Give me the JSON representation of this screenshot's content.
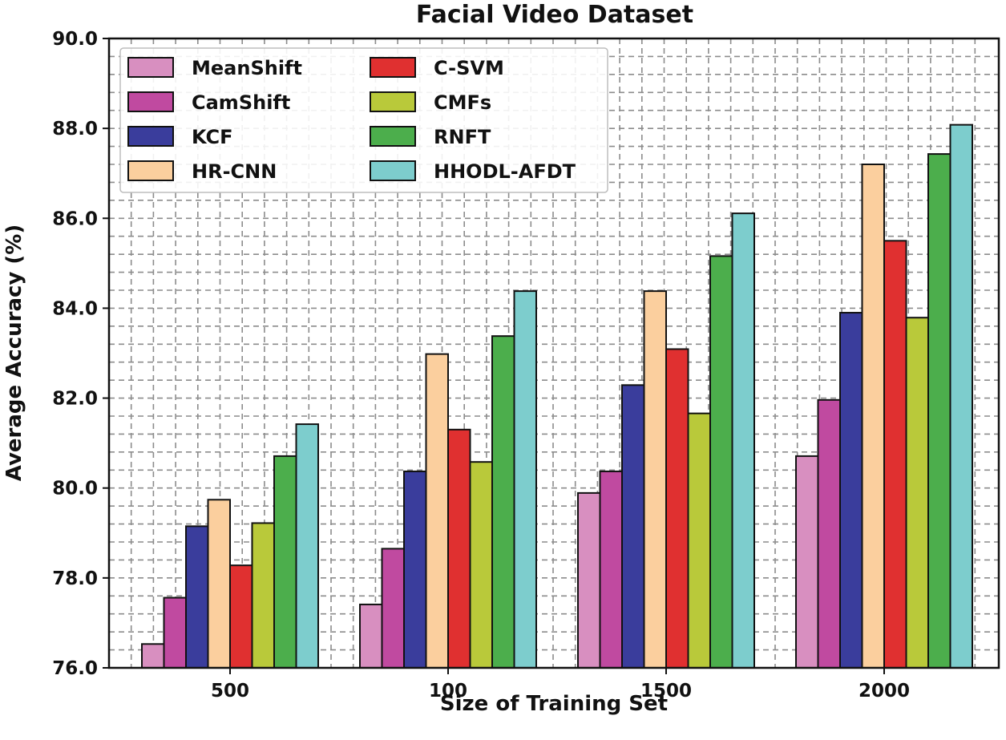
{
  "chart_data": {
    "type": "bar",
    "title": "Facial Video Dataset",
    "xlabel": "Size of Training Set",
    "ylabel": "Average Accuracy (%)",
    "categories": [
      "500",
      "100",
      "1500",
      "2000"
    ],
    "ylim": [
      76.0,
      90.0
    ],
    "yticks": [
      "76.0",
      "78.0",
      "80.0",
      "82.0",
      "84.0",
      "86.0",
      "88.0",
      "90.0"
    ],
    "grid": true,
    "legend_position": "top-left",
    "legend_columns": 2,
    "series": [
      {
        "name": "MeanShift",
        "color": "#d88fc0",
        "values": [
          76.53,
          77.41,
          79.89,
          80.71
        ]
      },
      {
        "name": "CamShift",
        "color": "#c04aa0",
        "values": [
          77.56,
          78.65,
          80.37,
          81.96
        ]
      },
      {
        "name": "KCF",
        "color": "#3a3d9c",
        "values": [
          79.15,
          80.37,
          82.29,
          83.9
        ]
      },
      {
        "name": "HR-CNN",
        "color": "#fbcf9e",
        "values": [
          79.74,
          82.98,
          84.38,
          87.2
        ]
      },
      {
        "name": "C-SVM",
        "color": "#e03030",
        "values": [
          78.28,
          81.3,
          83.09,
          85.5
        ]
      },
      {
        "name": "CMFs",
        "color": "#b9c93a",
        "values": [
          79.22,
          80.58,
          81.66,
          83.79
        ]
      },
      {
        "name": "RNFT",
        "color": "#4cae4c",
        "values": [
          80.71,
          83.38,
          85.16,
          87.43
        ]
      },
      {
        "name": "HHODL-AFDT",
        "color": "#7dcdcd",
        "values": [
          81.42,
          84.38,
          86.11,
          88.08
        ]
      }
    ]
  }
}
